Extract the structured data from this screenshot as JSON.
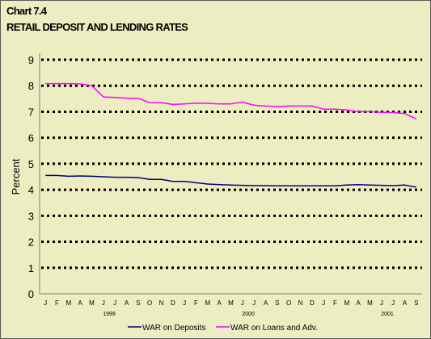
{
  "chart_data": {
    "type": "line",
    "title": "Chart 7.4",
    "subtitle": "RETAIL DEPOSIT AND LENDING RATES",
    "ylabel": "Percent",
    "ylim": [
      0,
      9
    ],
    "yticks": [
      0,
      1,
      2,
      3,
      4,
      5,
      6,
      7,
      8,
      9
    ],
    "grid": true,
    "legend_position": "bottom",
    "month_labels": [
      "J",
      "F",
      "M",
      "A",
      "M",
      "J",
      "J",
      "A",
      "S",
      "O",
      "N",
      "D",
      "J",
      "F",
      "M",
      "A",
      "M",
      "J",
      "J",
      "A",
      "S",
      "O",
      "N",
      "D",
      "J",
      "F",
      "M",
      "A",
      "M",
      "J",
      "J",
      "A",
      "S"
    ],
    "year_labels": [
      {
        "label": "1999",
        "month_index": 5.5
      },
      {
        "label": "2000",
        "month_index": 17.5
      },
      {
        "label": "2001",
        "month_index": 29.5
      }
    ],
    "x": [
      "1999-01",
      "1999-02",
      "1999-03",
      "1999-04",
      "1999-05",
      "1999-06",
      "1999-07",
      "1999-08",
      "1999-09",
      "1999-10",
      "1999-11",
      "1999-12",
      "2000-01",
      "2000-02",
      "2000-03",
      "2000-04",
      "2000-05",
      "2000-06",
      "2000-07",
      "2000-08",
      "2000-09",
      "2000-10",
      "2000-11",
      "2000-12",
      "2001-01",
      "2001-02",
      "2001-03",
      "2001-04",
      "2001-05",
      "2001-06",
      "2001-07",
      "2001-08",
      "2001-09"
    ],
    "series": [
      {
        "name": "WAR on Deposits",
        "color": "#000080",
        "values": [
          4.55,
          4.55,
          4.52,
          4.53,
          4.52,
          4.5,
          4.48,
          4.48,
          4.47,
          4.4,
          4.4,
          4.32,
          4.32,
          4.27,
          4.22,
          4.2,
          4.18,
          4.17,
          4.16,
          4.16,
          4.15,
          4.15,
          4.15,
          4.15,
          4.15,
          4.15,
          4.18,
          4.2,
          4.18,
          4.17,
          4.16,
          4.18,
          4.1
        ]
      },
      {
        "name": "WAR on Loans and Adv.",
        "color": "#ff00ff",
        "values": [
          8.08,
          8.08,
          8.08,
          8.07,
          8.0,
          7.57,
          7.55,
          7.52,
          7.52,
          7.35,
          7.35,
          7.28,
          7.3,
          7.33,
          7.32,
          7.3,
          7.3,
          7.37,
          7.25,
          7.22,
          7.2,
          7.22,
          7.22,
          7.22,
          7.1,
          7.1,
          7.07,
          7.0,
          7.0,
          6.98,
          6.97,
          6.93,
          6.72
        ]
      }
    ]
  }
}
